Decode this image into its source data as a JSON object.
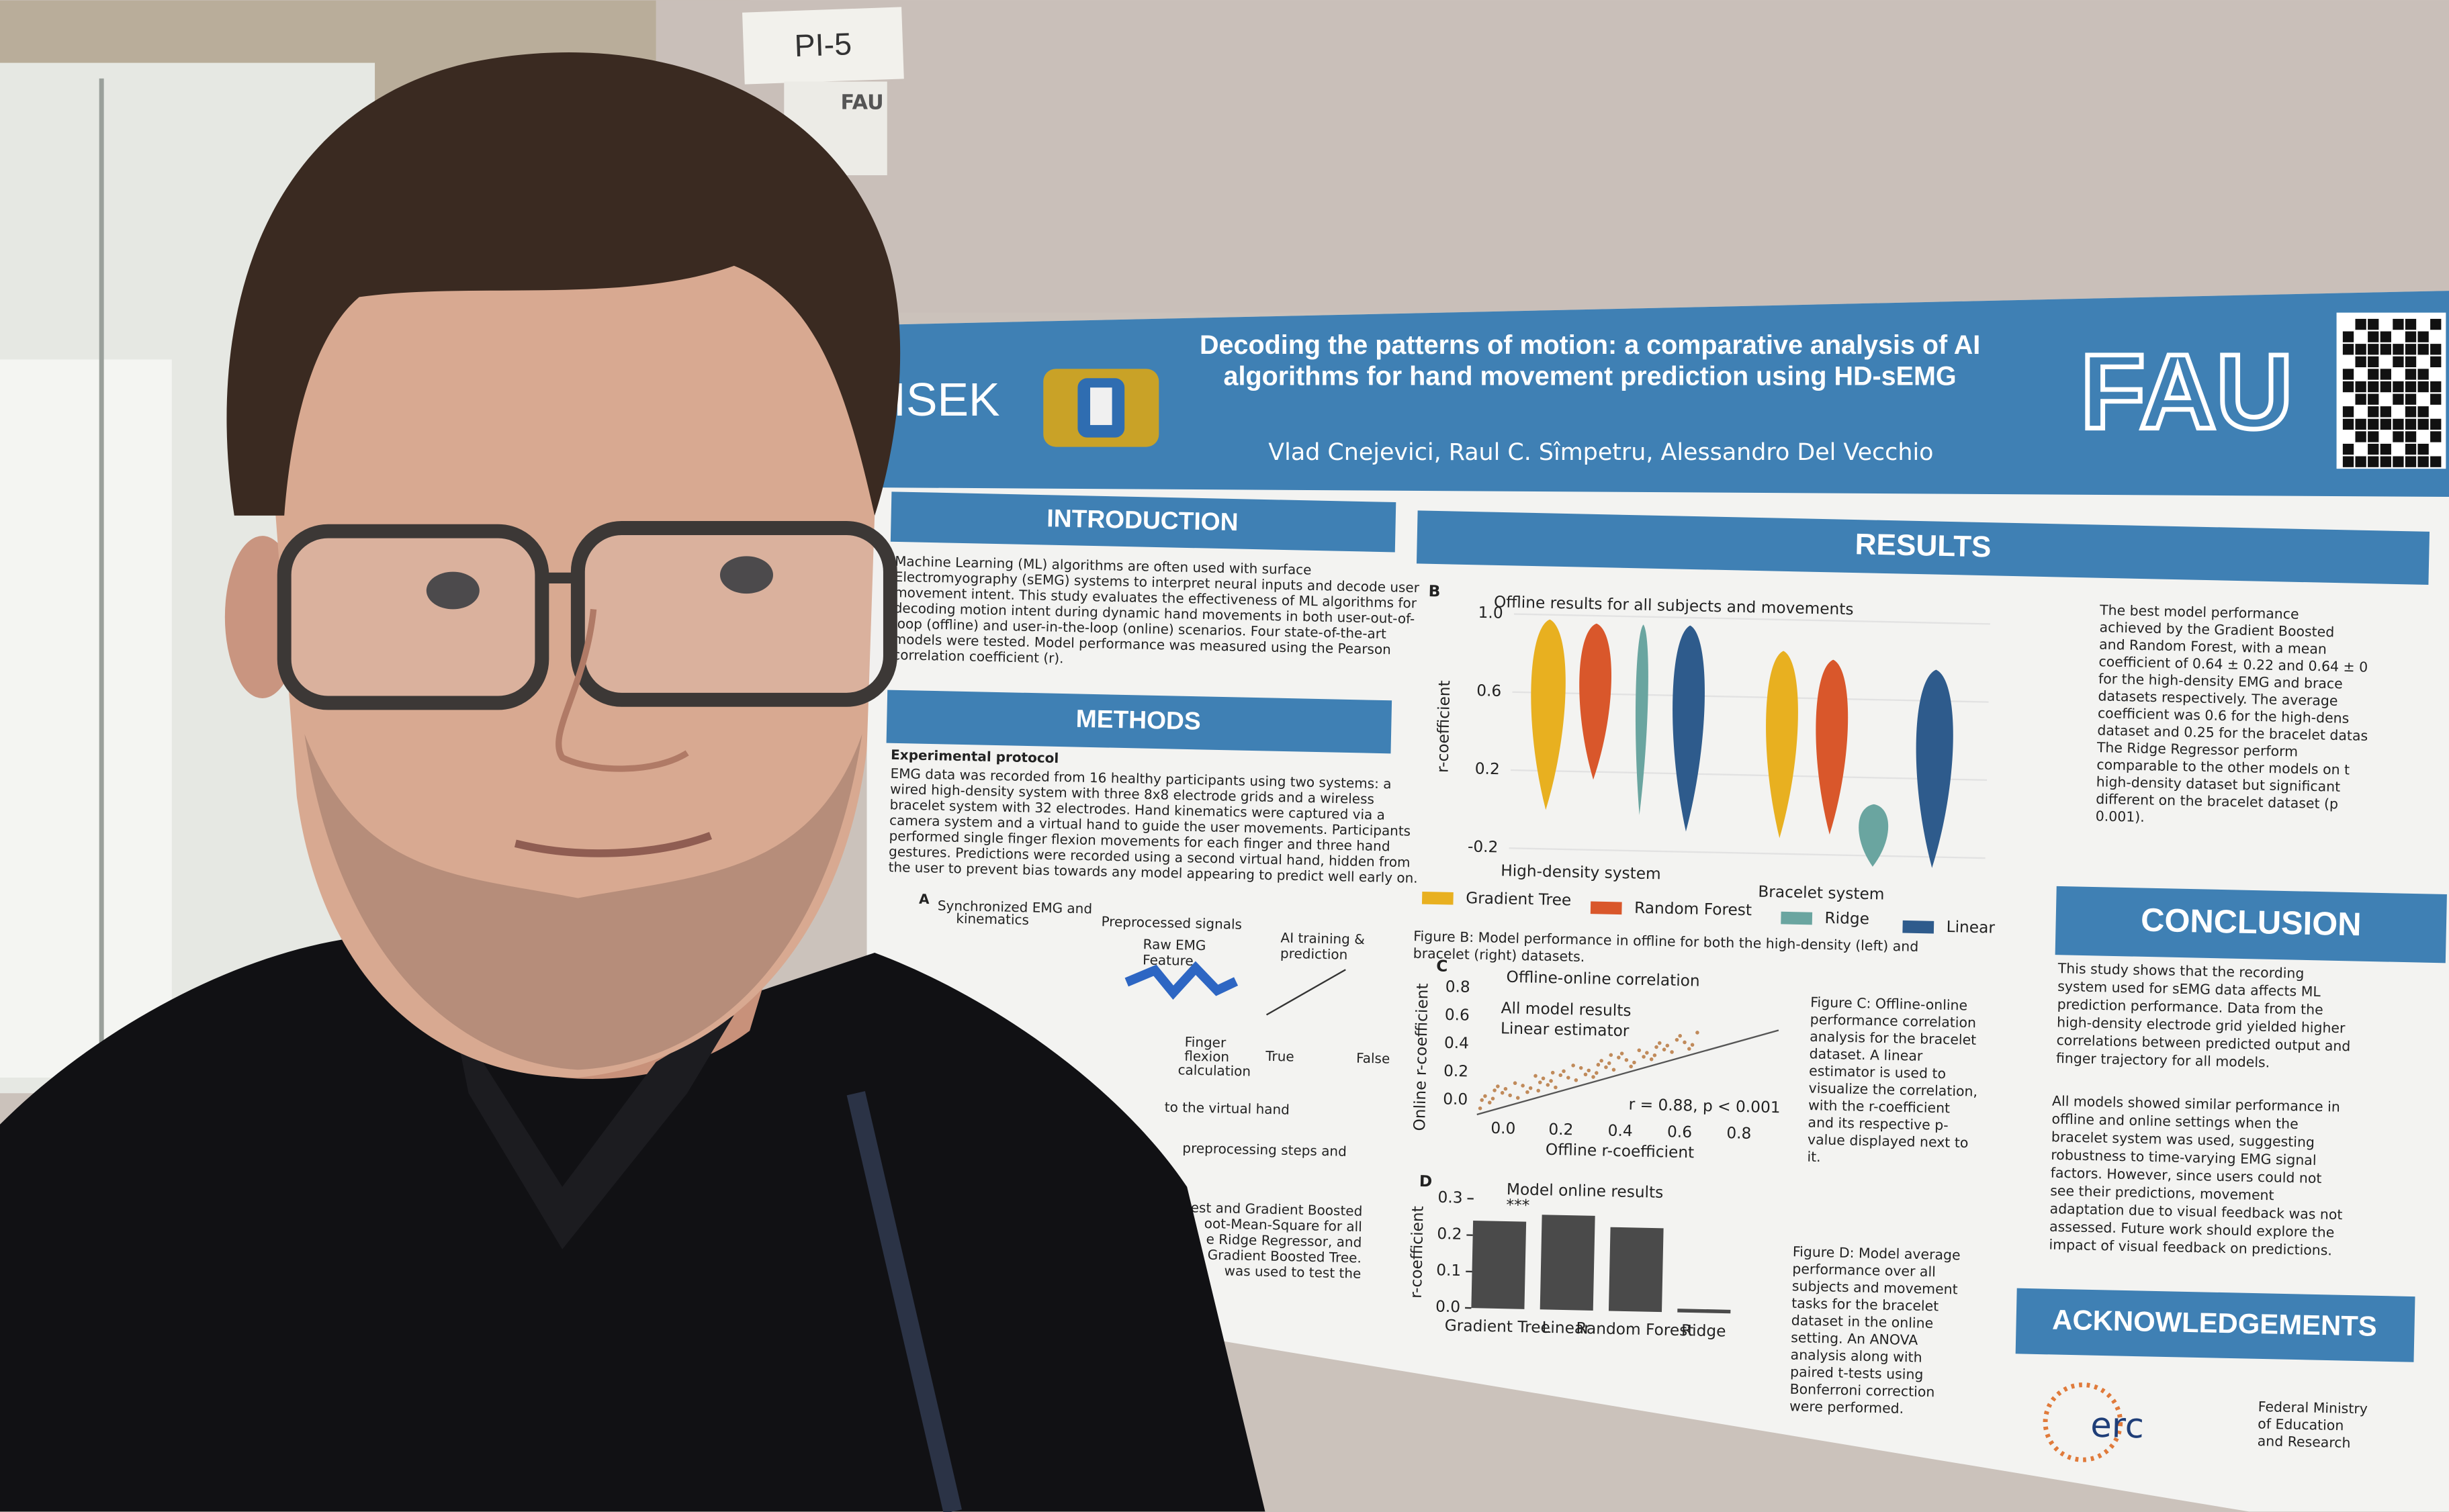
{
  "label": "PI-5",
  "corner_label": "FAU",
  "poster": {
    "title": [
      "Decoding the patterns of motion: a comparative analysis of AI",
      "algorithms for hand movement prediction using HD-sEMG"
    ],
    "authors": "Vlad Cnejevici, Raul C. Sîmpetru, Alessandro Del Vecchio",
    "logos": [
      "ISEK",
      "FAU"
    ],
    "introduction": {
      "heading": "INTRODUCTION",
      "lines": [
        "Machine Learning (ML) algorithms are often used with surface",
        "Electromyography (sEMG) systems to interpret neural inputs and decode user",
        "movement intent. This study evaluates the effectiveness of ML algorithms for",
        "decoding motion intent during dynamic hand movements in both user-out-of-",
        "loop (offline) and user-in-the-loop (online) scenarios. Four state-of-the-art",
        "models were tested. Model performance was measured using the Pearson",
        "correlation coefficient (r)."
      ]
    },
    "methods": {
      "heading": "METHODS",
      "subheading": "Experimental protocol",
      "lines": [
        "EMG data was recorded from 16 healthy participants using two systems: a",
        "wired high-density system with three 8x8 electrode grids and a wireless",
        "bracelet system with 32 electrodes. Hand kinematics were captured via a",
        "camera system and a virtual hand to guide the user movements. Participants",
        "performed single finger flexion movements for each finger and three hand",
        "gestures. Predictions were recorded using a second virtual hand, hidden from",
        "the user to prevent bias towards any model appearing to predict well early on."
      ],
      "figure_a": {
        "label": "A",
        "texts": [
          "Synchronized EMG and",
          "kinematics",
          "Preprocessed signals",
          "Raw EMG",
          "Feature",
          "AI training &",
          "prediction",
          "Finger",
          "flexion",
          "calculation",
          "True",
          "False",
          "to the virtual hand",
          "preprocessing steps and"
        ]
      },
      "partial_lines": [
        "est and Gradient Boosted",
        "oot-Mean-Square for all",
        "e Ridge Regressor, and",
        "Gradient Boosted Tree.",
        "was used to test the"
      ]
    },
    "results": {
      "heading": "RESULTS",
      "figure_b": {
        "label": "B",
        "title": "Offline results for all subjects and movements",
        "y_label": "r-coefficient",
        "yticks": [
          "1.0",
          "0.6",
          "0.2",
          "-0.2"
        ],
        "groups": [
          "High-density system",
          "Bracelet system"
        ],
        "legend": [
          "Gradient Tree",
          "Random Forest",
          "Ridge",
          "Linear"
        ],
        "caption": [
          "Figure B: Model performance in offline for both the high-density (left) and",
          "bracelet (right) datasets."
        ]
      },
      "text_lines": [
        "The best model performance",
        "achieved by the Gradient Boosted",
        "and Random Forest, with a mean",
        "coefficient of 0.64 ± 0.22 and 0.64 ± 0",
        "for the high-density EMG and brace",
        "datasets respectively. The average",
        "coefficient was 0.6 for the high-dens",
        "dataset and 0.25 for the bracelet datas",
        "The Ridge Regressor perform",
        "comparable to the other models on t",
        "high-density dataset but significant",
        "different on the bracelet dataset (p",
        "0.001)."
      ],
      "figure_c": {
        "label": "C",
        "title": "Offline-online correlation",
        "legend": [
          "All model results",
          "Linear estimator"
        ],
        "annotation": "r = 0.88, p < 0.001",
        "y_label": "Online r-coefficient",
        "x_label": "Offline r-coefficient",
        "yticks": [
          "0.8",
          "0.6",
          "0.4",
          "0.2",
          "0.0"
        ],
        "xticks": [
          "0.0",
          "0.2",
          "0.4",
          "0.6",
          "0.8"
        ],
        "caption": [
          "Figure C: Offline-online",
          "performance correlation",
          "analysis for the bracelet",
          "dataset. A linear",
          "estimator is used to",
          "visualize the correlation,",
          "with the r-coefficient",
          "and its respective p-",
          "value displayed next to",
          "it."
        ]
      },
      "figure_d": {
        "label": "D",
        "title": "Model online results",
        "y_label": "r-coefficient",
        "ylim": [
          0,
          0.3
        ],
        "yticks": [
          {
            "value": 0.3,
            "label": "0.3"
          },
          {
            "value": 0.2,
            "label": "0.2"
          },
          {
            "value": 0.1,
            "label": "0.1"
          },
          {
            "value": 0,
            "label": "0.0"
          }
        ],
        "significance": "***",
        "categories": [
          "Gradient Tree",
          "Linear",
          "Random Forest",
          "Ridge"
        ],
        "values": [
          0.24,
          0.26,
          0.23,
          0.01
        ],
        "caption": [
          "Figure D: Model average",
          "performance over all",
          "subjects and movement",
          "tasks for the bracelet",
          "dataset in the online",
          "setting. An ANOVA",
          "analysis along with",
          "paired t-tests using",
          "Bonferroni correction",
          "were performed."
        ]
      }
    },
    "conclusion": {
      "heading": "CONCLUSION",
      "paragraph_1": [
        "This study shows that the recording",
        "system used for sEMG data affects ML",
        "prediction performance. Data from the",
        "high-density electrode grid yielded higher",
        "correlations between predicted output and",
        "finger trajectory for all models."
      ],
      "paragraph_2": [
        "All models showed similar performance in",
        "offline and online settings when the",
        "bracelet system was used, suggesting",
        "robustness to time-varying EMG signal",
        "factors. However, since users could not",
        "see their predictions, movement",
        "adaptation due to visual feedback was not",
        "assessed. Future work should explore the",
        "impact of visual feedback on predictions."
      ]
    },
    "acknowledgements": {
      "heading": "ACKNOWLEDGEMENTS",
      "erc": "erc",
      "ministry": [
        "Federal Ministry",
        "of Education",
        "and Research"
      ]
    }
  }
}
